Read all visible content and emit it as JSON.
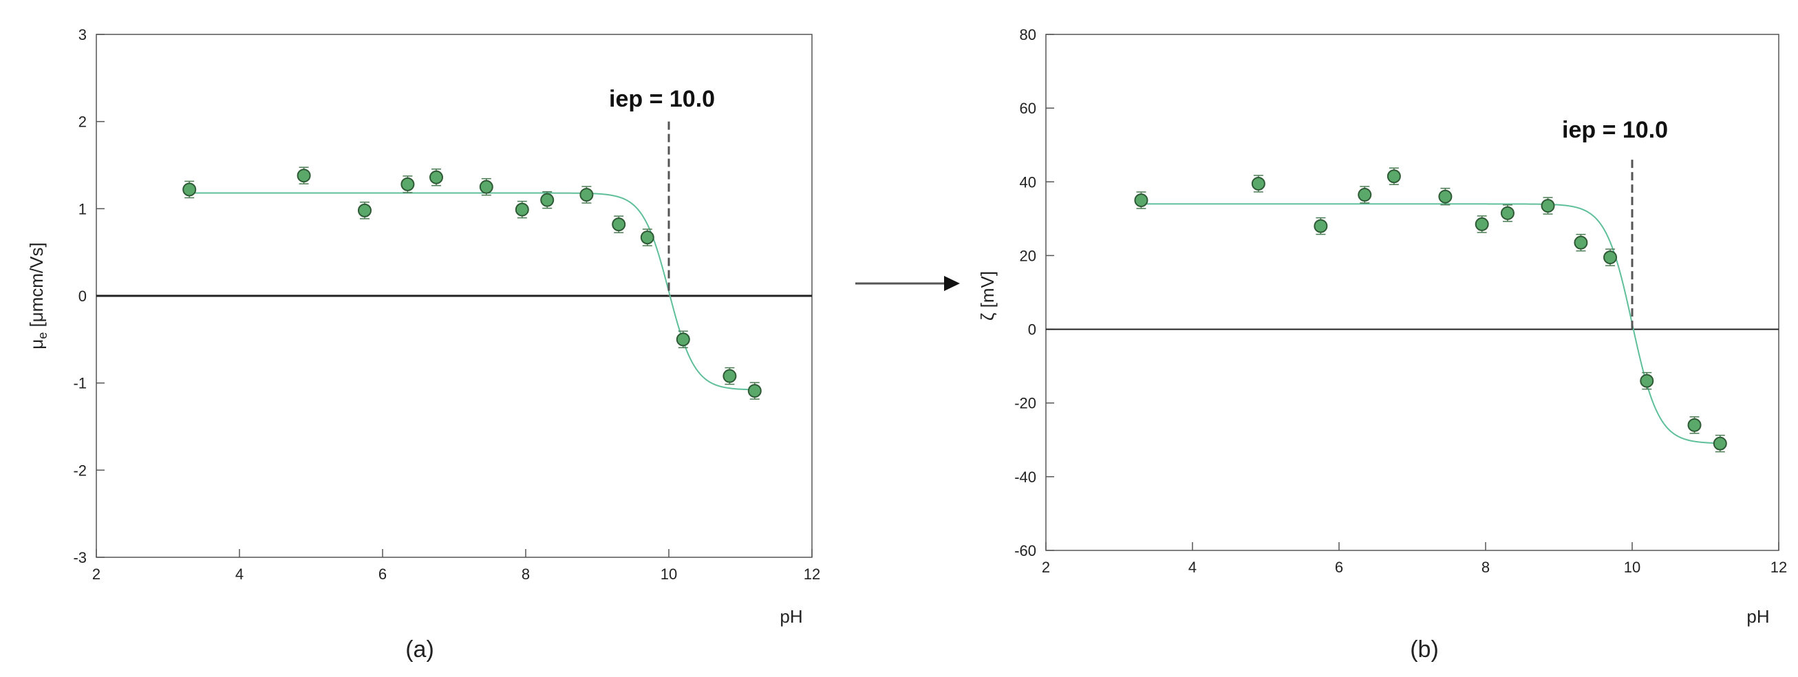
{
  "colors": {
    "fit_line": "#5fbf9a",
    "marker_fill": "#5aa96a",
    "marker_stroke": "#2f5a36",
    "iep_line": "#555555",
    "zero_line": "#222222"
  },
  "arrow": "→",
  "chart_data": [
    {
      "type": "scatter",
      "panel_label": "(a)",
      "xlabel": "pH",
      "ylabel_main": "μ",
      "ylabel_sub": "e",
      "ylabel_rest": " [μmcm/Vs]",
      "xlim": [
        2,
        12
      ],
      "ylim": [
        -3,
        3
      ],
      "xticks": [
        "2",
        "4",
        "6",
        "8",
        "10",
        "12"
      ],
      "yticks": [
        "-3",
        "-2",
        "-1",
        "0",
        "1",
        "2",
        "3"
      ],
      "iep": 10.0,
      "iep_label": "iep = 10.0",
      "iep_line_top": 2.0,
      "fit": {
        "upper": 1.18,
        "lower": -1.08,
        "midpoint": 10.0,
        "slope": 0.18
      },
      "points": [
        {
          "x": 3.3,
          "y": 1.22
        },
        {
          "x": 4.9,
          "y": 1.38
        },
        {
          "x": 5.75,
          "y": 0.98
        },
        {
          "x": 6.35,
          "y": 1.28
        },
        {
          "x": 6.75,
          "y": 1.36
        },
        {
          "x": 7.45,
          "y": 1.25
        },
        {
          "x": 7.95,
          "y": 0.99
        },
        {
          "x": 8.3,
          "y": 1.1
        },
        {
          "x": 8.85,
          "y": 1.16
        },
        {
          "x": 9.3,
          "y": 0.82
        },
        {
          "x": 9.7,
          "y": 0.67
        },
        {
          "x": 10.2,
          "y": -0.5
        },
        {
          "x": 10.85,
          "y": -0.92
        },
        {
          "x": 11.2,
          "y": -1.09
        }
      ]
    },
    {
      "type": "scatter",
      "panel_label": "(b)",
      "xlabel": "pH",
      "ylabel_main": "ζ",
      "ylabel_sub": "",
      "ylabel_rest": " [mV]",
      "xlim": [
        2,
        12
      ],
      "ylim": [
        -60,
        80
      ],
      "xticks": [
        "2",
        "4",
        "6",
        "8",
        "10",
        "12"
      ],
      "yticks": [
        "-60",
        "-40",
        "-20",
        "0",
        "20",
        "40",
        "60",
        "80"
      ],
      "iep": 10.0,
      "iep_label": "iep = 10.0",
      "iep_line_top": 46,
      "fit": {
        "upper": 34,
        "lower": -31,
        "midpoint": 10.0,
        "slope": 0.18
      },
      "points": [
        {
          "x": 3.3,
          "y": 35
        },
        {
          "x": 4.9,
          "y": 39.5
        },
        {
          "x": 5.75,
          "y": 28
        },
        {
          "x": 6.35,
          "y": 36.5
        },
        {
          "x": 6.75,
          "y": 41.5
        },
        {
          "x": 7.45,
          "y": 36
        },
        {
          "x": 7.95,
          "y": 28.5
        },
        {
          "x": 8.3,
          "y": 31.5
        },
        {
          "x": 8.85,
          "y": 33.5
        },
        {
          "x": 9.3,
          "y": 23.5
        },
        {
          "x": 9.7,
          "y": 19.5
        },
        {
          "x": 10.2,
          "y": -14
        },
        {
          "x": 10.85,
          "y": -26
        },
        {
          "x": 11.2,
          "y": -31
        }
      ]
    }
  ]
}
